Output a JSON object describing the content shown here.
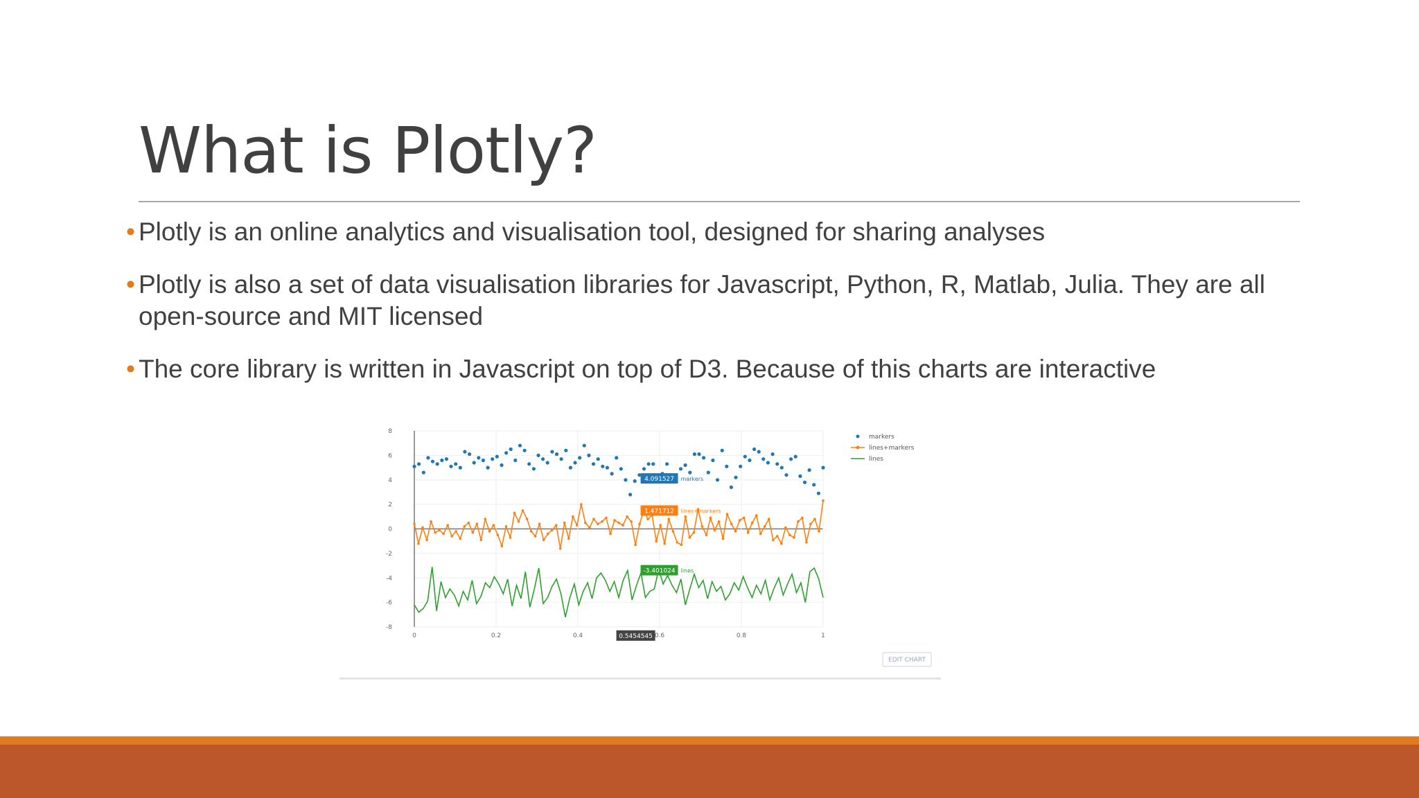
{
  "slide": {
    "title": "What is Plotly?",
    "bullets": [
      "Plotly is an online analytics and visualisation tool, designed for sharing analyses",
      "Plotly is also a set of data visualisation libraries for Javascript, Python, R, Matlab, Julia. They are all open-source and MIT licensed",
      "The core library is written in Javascript on top of D3. Because of this charts are interactive"
    ],
    "bullet_color": "#e07b24",
    "footer_colors": [
      "#e07b24",
      "#bb572b"
    ]
  },
  "chart_data": {
    "type": "scatter",
    "xlim": [
      0,
      1
    ],
    "ylim": [
      -8,
      8
    ],
    "x_ticks": [
      "0",
      "0.2",
      "0.4",
      "0.6",
      "0.8",
      "1"
    ],
    "y_ticks": [
      "8",
      "6",
      "4",
      "2",
      "0",
      "-2",
      "-4",
      "-6",
      "-8"
    ],
    "legend": {
      "placement": "top-right",
      "entries": [
        "markers",
        "lines+markers",
        "lines"
      ]
    },
    "hover_labels": [
      {
        "series": "markers",
        "value": "4.091527",
        "name": "markers",
        "color": "#1f77b4"
      },
      {
        "series": "lines+markers",
        "value": "1.471712",
        "name": "lines+markers",
        "color": "#ff7f0e"
      },
      {
        "series": "lines",
        "value": "-3.401024",
        "name": "lines",
        "color": "#2ca02c"
      }
    ],
    "x_hover_label": "0.5454545",
    "edit_button_label": "EDIT CHART",
    "series": [
      {
        "name": "markers",
        "mode": "markers",
        "color": "#1f77b4",
        "values": [
          5.1,
          5.3,
          4.6,
          5.8,
          5.5,
          5.3,
          5.6,
          5.7,
          5.1,
          5.3,
          5.0,
          6.3,
          6.1,
          5.4,
          5.8,
          5.6,
          5.0,
          5.7,
          5.9,
          5.2,
          6.2,
          6.5,
          5.6,
          6.8,
          6.4,
          5.3,
          4.9,
          6.0,
          5.7,
          5.4,
          6.3,
          6.1,
          5.7,
          6.4,
          5.0,
          5.4,
          5.8,
          6.8,
          6.0,
          5.3,
          5.7,
          5.1,
          5.0,
          4.5,
          5.8,
          4.9,
          4.0,
          2.8,
          3.9,
          4.4,
          4.9,
          5.3,
          5.3,
          4.2,
          4.5,
          5.3,
          4.4,
          4.1,
          4.9,
          5.2,
          4.6,
          6.1,
          6.1,
          5.8,
          4.6,
          5.6,
          4.0,
          6.4,
          5.1,
          3.4,
          4.2,
          5.1,
          5.9,
          5.6,
          6.5,
          6.3,
          5.7,
          5.4,
          6.1,
          5.3,
          5.0,
          4.4,
          5.7,
          5.9,
          4.3,
          3.8,
          4.8,
          3.6,
          2.9,
          5.0
        ]
      },
      {
        "name": "lines+markers",
        "mode": "lines+markers",
        "color": "#ff7f0e",
        "values": [
          0.4,
          -1.2,
          0.1,
          -0.9,
          0.6,
          -0.3,
          -0.1,
          -0.4,
          0.3,
          -0.6,
          -0.2,
          -0.8,
          0.2,
          0.5,
          -0.3,
          0.4,
          -0.9,
          0.8,
          -0.2,
          0.3,
          -0.5,
          -1.4,
          0.2,
          -0.7,
          1.3,
          0.6,
          1.5,
          0.8,
          -0.2,
          -0.6,
          0.4,
          -0.9,
          -0.4,
          -0.1,
          0.3,
          -1.6,
          0.5,
          -0.8,
          1.0,
          0.3,
          2.0,
          0.5,
          0.1,
          0.8,
          0.4,
          0.6,
          0.9,
          -0.4,
          0.7,
          0.5,
          0.3,
          1.0,
          0.6,
          -1.3,
          0.4,
          1.5,
          0.8,
          1.1,
          -1.0,
          0.3,
          -1.2,
          0.8,
          -0.2,
          -1.1,
          -1.3,
          1.0,
          -0.7,
          -0.3,
          1.6,
          0.2,
          -0.5,
          0.9,
          -0.1,
          0.6,
          -0.8,
          1.2,
          0.4,
          -0.2,
          0.7,
          0.9,
          -0.3,
          0.5,
          1.1,
          -0.4,
          0.2,
          0.8,
          -0.9,
          -0.6,
          -1.2,
          0.1,
          -0.5,
          -0.7,
          0.6,
          0.9,
          -1.1,
          0.4,
          0.8,
          -0.2,
          2.3
        ]
      },
      {
        "name": "lines",
        "mode": "lines",
        "color": "#2ca02c",
        "values": [
          -6.2,
          -6.8,
          -6.5,
          -5.9,
          -3.1,
          -6.7,
          -4.3,
          -5.6,
          -4.9,
          -5.4,
          -6.3,
          -5.1,
          -5.8,
          -4.2,
          -6.1,
          -5.5,
          -4.4,
          -4.8,
          -3.9,
          -4.5,
          -5.3,
          -4.1,
          -6.3,
          -4.6,
          -5.7,
          -3.5,
          -6.4,
          -4.9,
          -3.2,
          -6.1,
          -5.6,
          -4.7,
          -4.1,
          -5.3,
          -7.2,
          -5.6,
          -4.5,
          -6.2,
          -5.1,
          -4.4,
          -5.7,
          -4.0,
          -3.6,
          -4.2,
          -5.1,
          -4.3,
          -5.6,
          -4.2,
          -3.4,
          -5.8,
          -4.6,
          -3.6,
          -5.6,
          -5.1,
          -4.9,
          -3.3,
          -4.5,
          -3.8,
          -4.6,
          -5.2,
          -4.1,
          -6.2,
          -4.9,
          -3.7,
          -4.8,
          -4.2,
          -5.7,
          -4.3,
          -5.1,
          -4.7,
          -5.8,
          -5.3,
          -4.4,
          -5.0,
          -3.9,
          -4.8,
          -5.6,
          -4.6,
          -5.3,
          -4.2,
          -5.8,
          -4.8,
          -4.0,
          -5.4,
          -4.5,
          -3.7,
          -5.2,
          -4.4,
          -6.0,
          -3.5,
          -3.2,
          -4.1,
          -5.6
        ]
      }
    ]
  }
}
